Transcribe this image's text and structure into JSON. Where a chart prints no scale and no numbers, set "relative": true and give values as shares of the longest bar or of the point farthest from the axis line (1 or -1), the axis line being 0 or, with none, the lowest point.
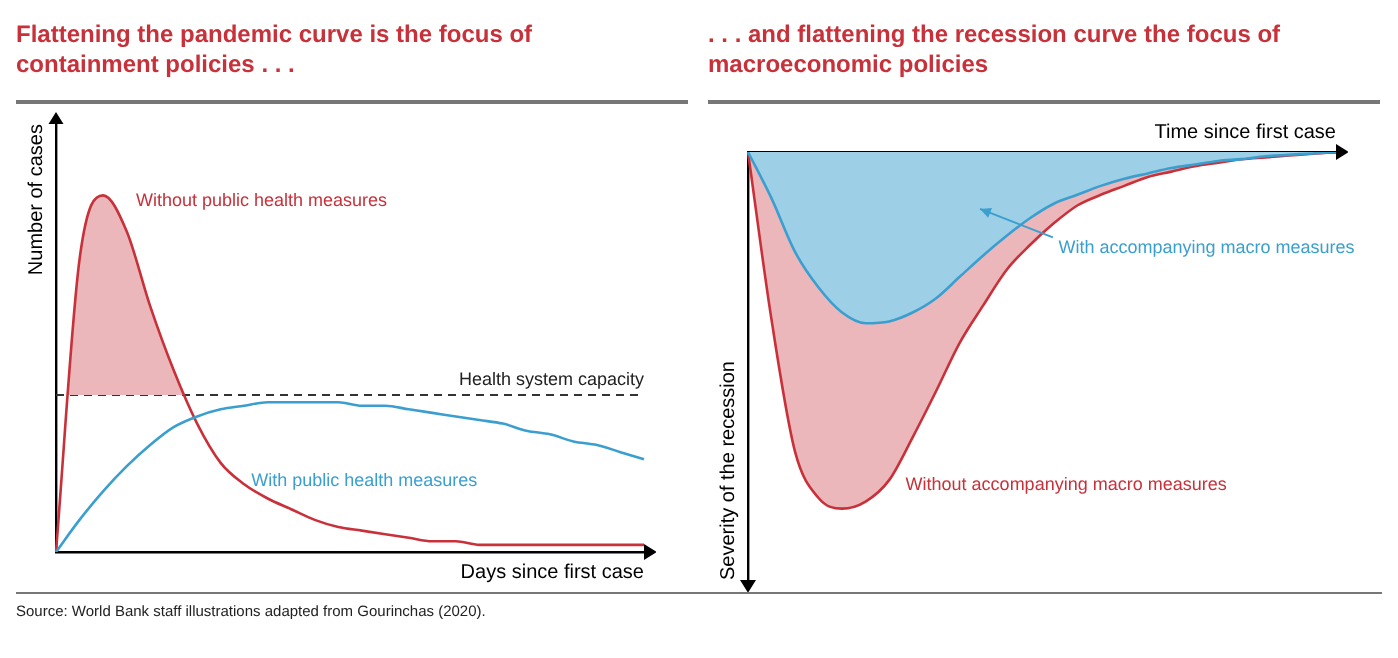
{
  "chart_data": [
    {
      "type": "line",
      "title": "Flattening the pandemic curve is the focus of containment policies . . .",
      "xlabel": "Days since first case",
      "ylabel": "Number of cases",
      "relative": true,
      "tick_labels": false,
      "grid": false,
      "legend": false,
      "categories": [
        null,
        null,
        null,
        null,
        null,
        null,
        null,
        null,
        null,
        null,
        null,
        null,
        null,
        null,
        null,
        null,
        null,
        null,
        null,
        null,
        null,
        null,
        null,
        null,
        null,
        null
      ],
      "series": [
        {
          "name": "Without public health measures",
          "color": "#c8313a",
          "values": [
            0,
            0.82,
            1,
            0.9,
            0.69,
            0.51,
            0.36,
            0.25,
            0.19,
            0.15,
            0.12,
            0.09,
            0.07,
            0.06,
            0.05,
            0.04,
            0.03,
            0.03,
            0.02,
            0.02,
            0.02,
            0.02,
            0.02,
            0.02,
            0.02,
            0.02
          ]
        },
        {
          "name": "With public health measures",
          "color": "#3a9fcf",
          "values": [
            0,
            0.09,
            0.17,
            0.24,
            0.3,
            0.35,
            0.38,
            0.4,
            0.41,
            0.42,
            0.42,
            0.42,
            0.42,
            0.41,
            0.41,
            0.4,
            0.39,
            0.38,
            0.37,
            0.36,
            0.34,
            0.33,
            0.31,
            0.3,
            0.28,
            0.26
          ]
        }
      ],
      "ref_lines": [
        {
          "axis": "y",
          "value": 0.44,
          "label": "Health system capacity",
          "color": "#333333",
          "line_style": "dashed"
        }
      ],
      "annotations": [
        "Source: World Bank staff illustrations adapted from Gourinchas (2020)."
      ]
    },
    {
      "type": "area",
      "title": ". . . and flattening the recession curve the focus of macroeconomic policies",
      "xlabel": "Time since first case",
      "ylabel": "Severity of the recession",
      "relative": true,
      "tick_labels": false,
      "grid": false,
      "legend": false,
      "categories": [
        null,
        null,
        null,
        null,
        null,
        null,
        null,
        null,
        null,
        null,
        null,
        null,
        null,
        null,
        null,
        null,
        null,
        null,
        null,
        null,
        null,
        null,
        null,
        null,
        null,
        null
      ],
      "series": [
        {
          "name": "Without accompanying macro measures",
          "color": "#c8313a",
          "values": [
            0,
            -0.47,
            -0.84,
            -0.97,
            -1,
            -0.98,
            -0.92,
            -0.8,
            -0.67,
            -0.535,
            -0.43,
            -0.33,
            -0.26,
            -0.2,
            -0.15,
            -0.12,
            -0.095,
            -0.07,
            -0.055,
            -0.04,
            -0.03,
            -0.02,
            -0.015,
            -0.01,
            -0.005,
            0
          ]
        },
        {
          "name": "With accompanying macro measures",
          "color": "#3a9fcf",
          "values": [
            0,
            -0.13,
            -0.28,
            -0.38,
            -0.45,
            -0.48,
            -0.475,
            -0.45,
            -0.41,
            -0.35,
            -0.29,
            -0.235,
            -0.185,
            -0.145,
            -0.12,
            -0.095,
            -0.075,
            -0.06,
            -0.045,
            -0.035,
            -0.025,
            -0.02,
            -0.012,
            -0.008,
            -0.004,
            0
          ]
        }
      ]
    }
  ]
}
